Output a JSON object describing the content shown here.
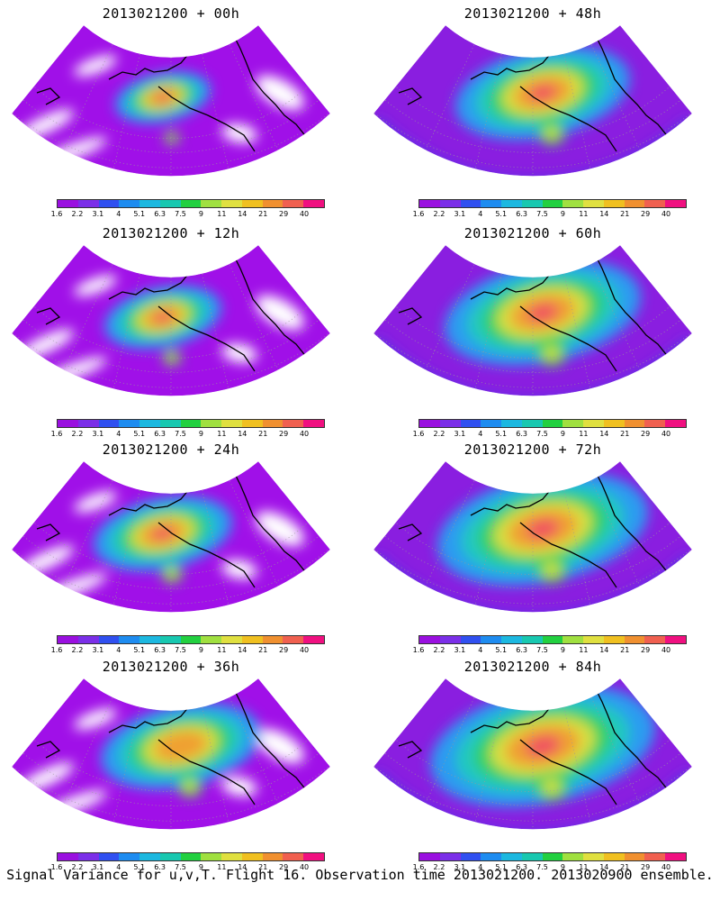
{
  "caption": "Signal Variance for u,v,T. Flight 16. Observation time 2013021200. 2013020900 ensemble.",
  "colorbar": {
    "labels": [
      "1.6",
      "2.2",
      "3.1",
      "4",
      "5.1",
      "6.3",
      "7.5",
      "9",
      "11",
      "14",
      "21",
      "29",
      "40"
    ],
    "colors": [
      "#9a10e0",
      "#7b2fe8",
      "#3050f0",
      "#1e8cf0",
      "#1cb8e0",
      "#18c8b0",
      "#22d040",
      "#a0e040",
      "#e0e040",
      "#f0c020",
      "#f09030",
      "#f06050",
      "#f01080"
    ]
  },
  "panels": [
    {
      "id": "p00",
      "title": "2013021200 + 00h",
      "level": 0.0
    },
    {
      "id": "p12",
      "title": "2013021200 + 12h",
      "level": 0.15
    },
    {
      "id": "p24",
      "title": "2013021200 + 24h",
      "level": 0.3
    },
    {
      "id": "p36",
      "title": "2013021200 + 36h",
      "level": 0.45
    },
    {
      "id": "p48",
      "title": "2013021200 + 48h",
      "level": 0.55
    },
    {
      "id": "p60",
      "title": "2013021200 + 60h",
      "level": 0.7
    },
    {
      "id": "p72",
      "title": "2013021200 + 72h",
      "level": 0.8
    },
    {
      "id": "p84",
      "title": "2013021200 + 84h",
      "level": 0.9
    }
  ]
}
